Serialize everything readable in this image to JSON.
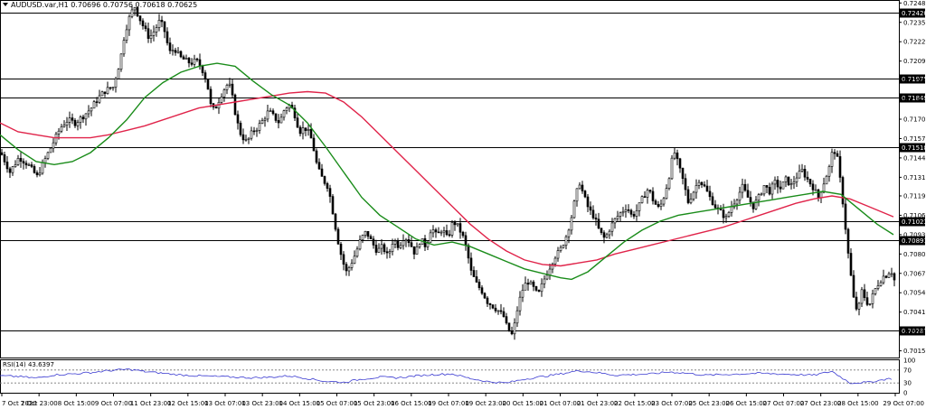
{
  "header": {
    "symbol_info": "AUDUSD.var,H1  0.70696 0.70756 0.70618 0.70625"
  },
  "colors": {
    "bull_candle": "#000000",
    "bear_candle": "#000000",
    "ma_fast": "#1a8c1a",
    "ma_slow": "#e0244a",
    "level_line": "#000000",
    "rsi_line": "#3b3bd1",
    "grid": "#000000"
  },
  "chart_data": [
    {
      "type": "candlestick",
      "symbol": "AUDUSD.var",
      "timeframe": "H1",
      "ohlc_last": {
        "open": 0.70696,
        "high": 0.70756,
        "low": 0.70618,
        "close": 0.70625
      },
      "ylim": [
        0.70105,
        0.72505
      ],
      "price_ticks": [
        "0.72485",
        "0.72355",
        "0.72225",
        "0.72095",
        "0.71965",
        "0.71835",
        "0.71705",
        "0.71575",
        "0.71445",
        "0.71315",
        "0.71190",
        "0.71060",
        "0.70930",
        "0.70800",
        "0.70670",
        "0.70540",
        "0.70410",
        "0.70280",
        "0.70150"
      ],
      "level_lines": [
        {
          "label": "0.72420",
          "value": 0.7242
        },
        {
          "label": "0.71975",
          "value": 0.71975
        },
        {
          "label": "0.71848",
          "value": 0.71848
        },
        {
          "label": "0.71518",
          "value": 0.71518
        },
        {
          "label": "0.71023",
          "value": 0.71023
        },
        {
          "label": "0.70891",
          "value": 0.70891
        },
        {
          "label": "0.70287",
          "value": 0.70287
        }
      ],
      "current_price_label": "0.70625",
      "time_ticks": [
        "7 Oct 2020",
        "7 Oct 23:00",
        "8 Oct 15:00",
        "9 Oct 07:00",
        "11 Oct 23:00",
        "12 Oct 15:00",
        "13 Oct 07:00",
        "13 Oct 23:00",
        "14 Oct 15:00",
        "15 Oct 07:00",
        "15 Oct 23:00",
        "16 Oct 15:00",
        "19 Oct 07:00",
        "19 Oct 23:00",
        "20 Oct 15:00",
        "21 Oct 07:00",
        "21 Oct 23:00",
        "22 Oct 15:00",
        "23 Oct 07:00",
        "25 Oct 23:00",
        "26 Oct 15:00",
        "27 Oct 07:00",
        "27 Oct 23:00",
        "28 Oct 15:00",
        "29 Oct 07:00"
      ],
      "close_path": [
        [
          0,
          0.7148
        ],
        [
          10,
          0.7135
        ],
        [
          20,
          0.7145
        ],
        [
          30,
          0.714
        ],
        [
          40,
          0.7132
        ],
        [
          50,
          0.7145
        ],
        [
          58,
          0.7155
        ],
        [
          66,
          0.7165
        ],
        [
          74,
          0.717
        ],
        [
          82,
          0.7168
        ],
        [
          90,
          0.7172
        ],
        [
          100,
          0.7178
        ],
        [
          108,
          0.7185
        ],
        [
          116,
          0.719
        ],
        [
          124,
          0.7192
        ],
        [
          132,
          0.721
        ],
        [
          136,
          0.7225
        ],
        [
          140,
          0.7235
        ],
        [
          144,
          0.7242
        ],
        [
          148,
          0.7246
        ],
        [
          152,
          0.724
        ],
        [
          158,
          0.7232
        ],
        [
          164,
          0.7225
        ],
        [
          170,
          0.723
        ],
        [
          176,
          0.7237
        ],
        [
          182,
          0.7228
        ],
        [
          186,
          0.7215
        ],
        [
          192,
          0.7218
        ],
        [
          198,
          0.7212
        ],
        [
          204,
          0.721
        ],
        [
          210,
          0.7208
        ],
        [
          216,
          0.721
        ],
        [
          222,
          0.7205
        ],
        [
          228,
          0.7195
        ],
        [
          232,
          0.718
        ],
        [
          236,
          0.7176
        ],
        [
          240,
          0.7182
        ],
        [
          246,
          0.719
        ],
        [
          252,
          0.7195
        ],
        [
          256,
          0.7185
        ],
        [
          260,
          0.7172
        ],
        [
          264,
          0.7162
        ],
        [
          268,
          0.7158
        ],
        [
          272,
          0.7155
        ],
        [
          278,
          0.7162
        ],
        [
          284,
          0.7165
        ],
        [
          290,
          0.717
        ],
        [
          296,
          0.7176
        ],
        [
          302,
          0.7172
        ],
        [
          308,
          0.7168
        ],
        [
          314,
          0.7178
        ],
        [
          320,
          0.718
        ],
        [
          326,
          0.7172
        ],
        [
          330,
          0.7162
        ],
        [
          336,
          0.7165
        ],
        [
          342,
          0.716
        ],
        [
          346,
          0.715
        ],
        [
          350,
          0.7138
        ],
        [
          356,
          0.713
        ],
        [
          362,
          0.7125
        ],
        [
          366,
          0.7112
        ],
        [
          370,
          0.7098
        ],
        [
          374,
          0.7085
        ],
        [
          378,
          0.7075
        ],
        [
          382,
          0.7068
        ],
        [
          386,
          0.7072
        ],
        [
          392,
          0.708
        ],
        [
          398,
          0.709
        ],
        [
          404,
          0.7095
        ],
        [
          410,
          0.7088
        ],
        [
          416,
          0.7082
        ],
        [
          422,
          0.7085
        ],
        [
          428,
          0.7078
        ],
        [
          434,
          0.709
        ],
        [
          440,
          0.7085
        ],
        [
          446,
          0.7092
        ],
        [
          452,
          0.7088
        ],
        [
          458,
          0.708
        ],
        [
          464,
          0.709
        ],
        [
          470,
          0.7085
        ],
        [
          476,
          0.7098
        ],
        [
          482,
          0.7092
        ],
        [
          488,
          0.7097
        ],
        [
          494,
          0.709
        ],
        [
          500,
          0.7102
        ],
        [
          506,
          0.7098
        ],
        [
          512,
          0.709
        ],
        [
          516,
          0.708
        ],
        [
          520,
          0.7068
        ],
        [
          526,
          0.706
        ],
        [
          532,
          0.7055
        ],
        [
          538,
          0.7048
        ],
        [
          544,
          0.7045
        ],
        [
          550,
          0.7042
        ],
        [
          556,
          0.7038
        ],
        [
          560,
          0.703
        ],
        [
          566,
          0.7025
        ],
        [
          570,
          0.704
        ],
        [
          576,
          0.7055
        ],
        [
          582,
          0.7062
        ],
        [
          588,
          0.7058
        ],
        [
          594,
          0.7052
        ],
        [
          600,
          0.7062
        ],
        [
          606,
          0.707
        ],
        [
          612,
          0.7078
        ],
        [
          618,
          0.7082
        ],
        [
          624,
          0.709
        ],
        [
          630,
          0.7102
        ],
        [
          636,
          0.712
        ],
        [
          640,
          0.7128
        ],
        [
          644,
          0.712
        ],
        [
          650,
          0.711
        ],
        [
          656,
          0.7105
        ],
        [
          662,
          0.7095
        ],
        [
          668,
          0.709
        ],
        [
          674,
          0.7098
        ],
        [
          680,
          0.7104
        ],
        [
          686,
          0.7108
        ],
        [
          692,
          0.7112
        ],
        [
          698,
          0.7105
        ],
        [
          704,
          0.711
        ],
        [
          710,
          0.7118
        ],
        [
          716,
          0.7124
        ],
        [
          722,
          0.7115
        ],
        [
          728,
          0.711
        ],
        [
          734,
          0.712
        ],
        [
          740,
          0.7135
        ],
        [
          744,
          0.715
        ],
        [
          748,
          0.7142
        ],
        [
          754,
          0.713
        ],
        [
          760,
          0.7115
        ],
        [
          766,
          0.7122
        ],
        [
          772,
          0.713
        ],
        [
          778,
          0.7125
        ],
        [
          784,
          0.7118
        ],
        [
          790,
          0.7112
        ],
        [
          796,
          0.7108
        ],
        [
          802,
          0.7104
        ],
        [
          808,
          0.7112
        ],
        [
          814,
          0.7118
        ],
        [
          820,
          0.7125
        ],
        [
          826,
          0.7118
        ],
        [
          832,
          0.7112
        ],
        [
          838,
          0.7118
        ],
        [
          844,
          0.7126
        ],
        [
          850,
          0.7122
        ],
        [
          856,
          0.7128
        ],
        [
          862,
          0.7124
        ],
        [
          868,
          0.713
        ],
        [
          874,
          0.7126
        ],
        [
          880,
          0.7132
        ],
        [
          886,
          0.7136
        ],
        [
          892,
          0.713
        ],
        [
          898,
          0.7125
        ],
        [
          904,
          0.7118
        ],
        [
          910,
          0.7128
        ],
        [
          916,
          0.7138
        ],
        [
          920,
          0.715
        ],
        [
          924,
          0.7148
        ],
        [
          928,
          0.713
        ],
        [
          932,
          0.711
        ],
        [
          936,
          0.7085
        ],
        [
          940,
          0.7065
        ],
        [
          944,
          0.7045
        ],
        [
          948,
          0.7042
        ],
        [
          952,
          0.7055
        ],
        [
          956,
          0.705
        ],
        [
          960,
          0.7045
        ],
        [
          964,
          0.7052
        ],
        [
          968,
          0.7058
        ],
        [
          972,
          0.7062
        ],
        [
          976,
          0.7065
        ],
        [
          980,
          0.7066
        ],
        [
          984,
          0.707
        ],
        [
          988,
          0.70625
        ]
      ],
      "ma_fast_path": [
        [
          0,
          0.716
        ],
        [
          20,
          0.715
        ],
        [
          40,
          0.7142
        ],
        [
          60,
          0.714
        ],
        [
          80,
          0.7142
        ],
        [
          100,
          0.7148
        ],
        [
          120,
          0.7158
        ],
        [
          140,
          0.717
        ],
        [
          160,
          0.7185
        ],
        [
          180,
          0.7195
        ],
        [
          200,
          0.7202
        ],
        [
          220,
          0.7206
        ],
        [
          240,
          0.7208
        ],
        [
          260,
          0.7206
        ],
        [
          280,
          0.7196
        ],
        [
          300,
          0.7187
        ],
        [
          320,
          0.718
        ],
        [
          340,
          0.7168
        ],
        [
          360,
          0.7152
        ],
        [
          380,
          0.7135
        ],
        [
          400,
          0.7118
        ],
        [
          420,
          0.7106
        ],
        [
          440,
          0.7098
        ],
        [
          460,
          0.709
        ],
        [
          480,
          0.7086
        ],
        [
          500,
          0.7088
        ],
        [
          520,
          0.7085
        ],
        [
          540,
          0.708
        ],
        [
          560,
          0.7075
        ],
        [
          580,
          0.707
        ],
        [
          600,
          0.7067
        ],
        [
          620,
          0.7064
        ],
        [
          632,
          0.7063
        ],
        [
          650,
          0.7068
        ],
        [
          670,
          0.7078
        ],
        [
          690,
          0.7088
        ],
        [
          710,
          0.7096
        ],
        [
          730,
          0.7102
        ],
        [
          750,
          0.7106
        ],
        [
          770,
          0.7108
        ],
        [
          790,
          0.711
        ],
        [
          810,
          0.7112
        ],
        [
          830,
          0.7114
        ],
        [
          850,
          0.7116
        ],
        [
          870,
          0.7118
        ],
        [
          890,
          0.712
        ],
        [
          910,
          0.7122
        ],
        [
          930,
          0.712
        ],
        [
          950,
          0.711
        ],
        [
          970,
          0.71
        ],
        [
          988,
          0.7093
        ]
      ],
      "ma_slow_path": [
        [
          0,
          0.7168
        ],
        [
          20,
          0.7162
        ],
        [
          40,
          0.716
        ],
        [
          60,
          0.7158
        ],
        [
          80,
          0.7158
        ],
        [
          100,
          0.7158
        ],
        [
          120,
          0.716
        ],
        [
          140,
          0.7163
        ],
        [
          160,
          0.7166
        ],
        [
          180,
          0.717
        ],
        [
          200,
          0.7174
        ],
        [
          220,
          0.7178
        ],
        [
          240,
          0.718
        ],
        [
          260,
          0.7182
        ],
        [
          280,
          0.7184
        ],
        [
          300,
          0.7186
        ],
        [
          320,
          0.7188
        ],
        [
          340,
          0.7189
        ],
        [
          360,
          0.7188
        ],
        [
          380,
          0.7182
        ],
        [
          400,
          0.7172
        ],
        [
          420,
          0.716
        ],
        [
          440,
          0.7148
        ],
        [
          460,
          0.7136
        ],
        [
          480,
          0.7124
        ],
        [
          500,
          0.7112
        ],
        [
          520,
          0.71
        ],
        [
          540,
          0.709
        ],
        [
          560,
          0.7082
        ],
        [
          580,
          0.7076
        ],
        [
          600,
          0.7073
        ],
        [
          620,
          0.7072
        ],
        [
          640,
          0.7074
        ],
        [
          660,
          0.7076
        ],
        [
          680,
          0.708
        ],
        [
          700,
          0.7083
        ],
        [
          720,
          0.7086
        ],
        [
          740,
          0.7089
        ],
        [
          760,
          0.7092
        ],
        [
          780,
          0.7095
        ],
        [
          800,
          0.7098
        ],
        [
          820,
          0.7102
        ],
        [
          840,
          0.7106
        ],
        [
          860,
          0.711
        ],
        [
          880,
          0.7114
        ],
        [
          900,
          0.7117
        ],
        [
          920,
          0.7119
        ],
        [
          940,
          0.7117
        ],
        [
          960,
          0.7112
        ],
        [
          988,
          0.7105
        ]
      ]
    },
    {
      "type": "line",
      "indicator": "RSI(14)",
      "label": "RSI(14) 43.6397",
      "ylim": [
        0,
        100
      ],
      "y_ticks": [
        "100",
        "70",
        "30",
        "0"
      ],
      "dotted_levels": [
        70,
        30
      ],
      "rsi_path": [
        [
          0,
          52
        ],
        [
          20,
          50
        ],
        [
          40,
          45
        ],
        [
          60,
          55
        ],
        [
          80,
          58
        ],
        [
          100,
          62
        ],
        [
          120,
          68
        ],
        [
          140,
          72
        ],
        [
          150,
          70
        ],
        [
          160,
          65
        ],
        [
          180,
          60
        ],
        [
          200,
          55
        ],
        [
          220,
          52
        ],
        [
          240,
          50
        ],
        [
          260,
          48
        ],
        [
          280,
          46
        ],
        [
          300,
          48
        ],
        [
          320,
          52
        ],
        [
          340,
          44
        ],
        [
          360,
          35
        ],
        [
          380,
          32
        ],
        [
          400,
          42
        ],
        [
          420,
          48
        ],
        [
          440,
          46
        ],
        [
          460,
          52
        ],
        [
          480,
          56
        ],
        [
          500,
          58
        ],
        [
          520,
          44
        ],
        [
          540,
          34
        ],
        [
          560,
          30
        ],
        [
          580,
          42
        ],
        [
          600,
          50
        ],
        [
          620,
          58
        ],
        [
          640,
          68
        ],
        [
          660,
          62
        ],
        [
          680,
          54
        ],
        [
          700,
          56
        ],
        [
          720,
          58
        ],
        [
          740,
          64
        ],
        [
          760,
          60
        ],
        [
          780,
          54
        ],
        [
          800,
          56
        ],
        [
          820,
          58
        ],
        [
          840,
          60
        ],
        [
          860,
          58
        ],
        [
          880,
          56
        ],
        [
          900,
          54
        ],
        [
          920,
          66
        ],
        [
          940,
          30
        ],
        [
          960,
          32
        ],
        [
          980,
          42
        ],
        [
          988,
          44
        ]
      ]
    }
  ]
}
